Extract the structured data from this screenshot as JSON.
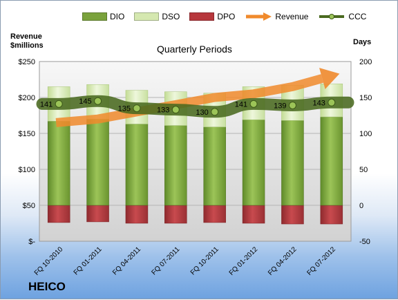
{
  "legend": [
    {
      "name": "DIO",
      "kind": "bar",
      "color": "#7aa23c"
    },
    {
      "name": "DSO",
      "kind": "bar",
      "color": "#d5e8b0"
    },
    {
      "name": "DPO",
      "kind": "bar",
      "color": "#b7373c"
    },
    {
      "name": "Revenue",
      "kind": "arrow",
      "color": "#f08a2c"
    },
    {
      "name": "CCC",
      "kind": "line",
      "color": "#4a6a20"
    }
  ],
  "left_axis_title": "Revenue\n$millions",
  "right_axis_title": "Days",
  "plot_title": "Quarterly Periods",
  "company": "HEICO",
  "chart_data": {
    "type": "bar",
    "title": "Quarterly Periods",
    "categories": [
      "FQ 10-2010",
      "FQ 01-2011",
      "FQ 04-2011",
      "FQ 07-2011",
      "FQ 10-2011",
      "FQ 01-2012",
      "FQ 04-2012",
      "FQ 07-2012"
    ],
    "series": [
      {
        "name": "DIO",
        "axis": "right",
        "stacked": true,
        "values": [
          117,
          120,
          113,
          111,
          109,
          119,
          118,
          123
        ]
      },
      {
        "name": "DSO",
        "axis": "right",
        "stacked": true,
        "values": [
          48,
          48,
          47,
          47,
          47,
          46,
          49,
          46
        ]
      },
      {
        "name": "DPO",
        "axis": "right",
        "stacked": true,
        "values": [
          -24,
          -23,
          -25,
          -25,
          -24,
          -25,
          -26,
          -26
        ]
      },
      {
        "name": "CCC",
        "axis": "right",
        "type": "line",
        "values": [
          141,
          145,
          135,
          133,
          130,
          141,
          139,
          143
        ]
      },
      {
        "name": "Revenue",
        "axis": "left",
        "type": "arrow",
        "values": [
          165,
          170,
          180,
          190,
          200,
          205,
          215,
          230
        ]
      }
    ],
    "left_axis": {
      "label": "Revenue $millions",
      "range": [
        0,
        250
      ],
      "ticks": [
        "$-",
        "$50",
        "$100",
        "$150",
        "$200",
        "$250"
      ]
    },
    "right_axis": {
      "label": "Days",
      "range": [
        -50,
        200
      ],
      "ticks": [
        "-50",
        "0",
        "50",
        "100",
        "150",
        "200"
      ]
    },
    "data_labels": [
      "141",
      "145",
      "135",
      "133",
      "130",
      "141",
      "139",
      "143"
    ],
    "grid": true,
    "legend_position": "top"
  }
}
